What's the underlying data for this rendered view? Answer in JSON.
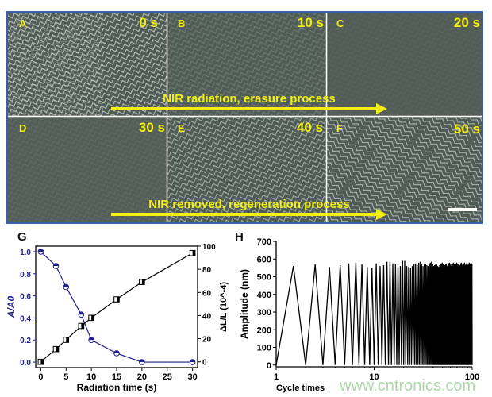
{
  "micrographs": {
    "panels": [
      {
        "label": "A",
        "time": "0 s"
      },
      {
        "label": "B",
        "time": "10 s"
      },
      {
        "label": "C",
        "time": "20 s"
      },
      {
        "label": "D",
        "time": "30 s"
      },
      {
        "label": "E",
        "time": "40 s"
      },
      {
        "label": "F",
        "time": "50 s"
      }
    ],
    "arrow_top": "NIR radiation, erasure process",
    "arrow_bottom": "NIR removed, regeneration process",
    "colors": {
      "frame": "#3a5fa8",
      "annotation": "#f2ee10",
      "background": "#4e5a54"
    }
  },
  "panel_g_label": "G",
  "panel_h_label": "H",
  "watermark": "www.cntronics.com",
  "chart_data": [
    {
      "type": "line",
      "panel": "G",
      "xlabel": "Radiation time (s)",
      "ylabel": "A/A0",
      "ylabel_right": "ΔL/L (10^-4)",
      "xlim": [
        -1,
        31
      ],
      "xticks": [
        0,
        5,
        10,
        15,
        20,
        25,
        30
      ],
      "ylim": [
        -0.05,
        1.05
      ],
      "yticks": [
        0.0,
        0.2,
        0.4,
        0.6,
        0.8,
        1.0
      ],
      "ylim_right": [
        -5,
        100
      ],
      "yticks_right": [
        0,
        20,
        40,
        60,
        80,
        100
      ],
      "grid": false,
      "series": [
        {
          "axis": "left",
          "color": "#1f1f8a",
          "marker": "circle",
          "x": [
            0,
            3,
            5,
            8,
            10,
            15,
            20,
            30
          ],
          "y": [
            1.0,
            0.87,
            0.68,
            0.43,
            0.2,
            0.08,
            0.0,
            0.0
          ]
        },
        {
          "axis": "right",
          "color": "#000000",
          "marker": "square",
          "x": [
            0,
            3,
            5,
            8,
            10,
            15,
            20,
            30
          ],
          "y": [
            0,
            11,
            19,
            31,
            38,
            54,
            69,
            94
          ]
        }
      ]
    },
    {
      "type": "line",
      "panel": "H",
      "xlabel": "Cycle times",
      "ylabel": "Amplitude (nm)",
      "xscale": "log",
      "xlim": [
        1,
        100
      ],
      "xticks": [
        1,
        10,
        100
      ],
      "ylim": [
        -10,
        700
      ],
      "yticks": [
        0,
        100,
        200,
        300,
        400,
        500,
        600,
        700
      ],
      "grid": false,
      "series": [
        {
          "color": "#000000",
          "description_trough": 0,
          "cycles_start": 1,
          "peaks": [
            560,
            570,
            555,
            565,
            575,
            580,
            570,
            555,
            550,
            575,
            560,
            565,
            585,
            585,
            575,
            570,
            555,
            560,
            590,
            590,
            560,
            555,
            550,
            560,
            570,
            575,
            565,
            580,
            585,
            570,
            560,
            575,
            570,
            565,
            560,
            575,
            580,
            585,
            570,
            560,
            565,
            570,
            575,
            560,
            555,
            565,
            570,
            575,
            580,
            570,
            560,
            565,
            575,
            570,
            560,
            565,
            570,
            580,
            575,
            560,
            570,
            565,
            575,
            580,
            570,
            560,
            565,
            575,
            580,
            570,
            560,
            570,
            575,
            565,
            560,
            575,
            580,
            570,
            565,
            560,
            570,
            575,
            580,
            570,
            560,
            565,
            575,
            580,
            570,
            565,
            560,
            575,
            580,
            570,
            560,
            575,
            580,
            575,
            570
          ]
        }
      ]
    }
  ]
}
